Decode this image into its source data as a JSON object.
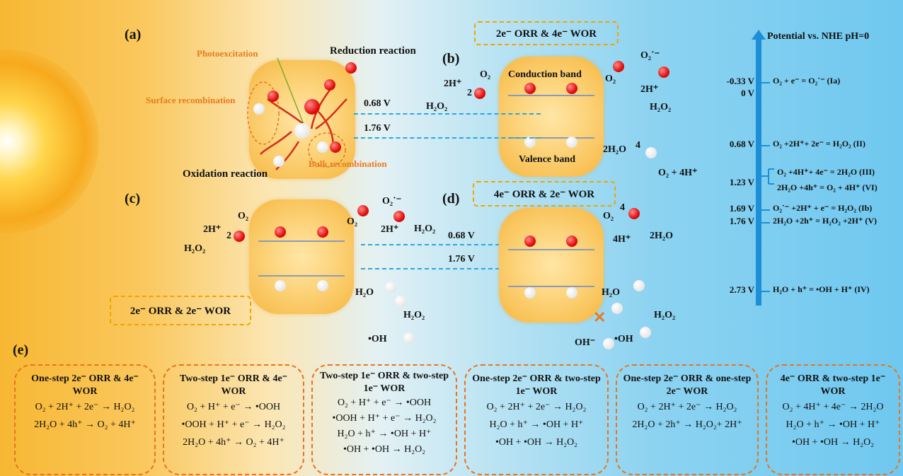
{
  "panels": {
    "a": "(a)",
    "b": "(b)",
    "c": "(c)",
    "d": "(d)",
    "e": "(e)"
  },
  "panel_a": {
    "photoexcitation": "Photoexcitation",
    "reduction": "Reduction reaction",
    "surface_recomb": "Surface recombination",
    "bulk_recomb": "Bulk recombination",
    "oxidation": "Oxidation reaction",
    "hplus": "h⁺",
    "eminus": "e⁻"
  },
  "panel_b": {
    "box_label": "2e⁻ ORR & 4e⁻ WOR",
    "cb": "Conduction band",
    "vb": "Valence band",
    "v1": "0.68 V",
    "v2": "1.76 V",
    "left_2h": "2H⁺",
    "left_o2": "O₂",
    "left_2": "2",
    "left_h2o2": "H₂O₂",
    "right_o2": "O₂",
    "right_o2rad": "O₂˙⁻",
    "right_2h": "2H⁺",
    "right_h2o2": "H₂O₂",
    "wor_2h2o": "2H₂O",
    "wor_4": "4",
    "wor_prod": "O₂ + 4H⁺"
  },
  "panel_c": {
    "box_label": "2e⁻ ORR & 2e⁻ WOR",
    "v1": "0.68 V",
    "v2": "1.76 V",
    "left_2h": "2H⁺",
    "left_o2": "O₂",
    "left_2": "2",
    "left_h2o2": "H₂O₂",
    "o2": "O₂",
    "o2rad": "O₂˙⁻",
    "twoh": "2H⁺",
    "h2o2": "H₂O₂",
    "h2o": "H₂O",
    "h2o2_b": "H₂O₂",
    "oh": "•OH"
  },
  "panel_d": {
    "box_label": "4e⁻ ORR & 2e⁻ WOR",
    "o2": "O₂",
    "four": "4",
    "fourh": "4H⁺",
    "h2o_prod": "2H₂O",
    "h2o": "H₂O",
    "h2o2": "H₂O₂",
    "ohminus": "OH⁻",
    "oh": "•OH",
    "cross": "✕"
  },
  "potential": {
    "title": "Potential vs. NHE pH=0",
    "rows": [
      {
        "v": "-0.33 V",
        "eq": "O₂ + e⁻ = O₂˙⁻ (Ia)"
      },
      {
        "v": "0 V",
        "eq": ""
      },
      {
        "v": "0.68 V",
        "eq": "O₂ +2H⁺+ 2e⁻ = H₂O₂ (II)"
      },
      {
        "v": "1.23 V",
        "eq": "O₂ +4H⁺+ 4e⁻ = 2H₂O (III)"
      },
      {
        "v": "",
        "eq": "2H₂O +4h⁺ = O₂ + 4H⁺ (VI)"
      },
      {
        "v": "1.69 V",
        "eq": "O₂˙⁻ +2H⁺ + e⁻ = H₂O₂ (Ib)"
      },
      {
        "v": "1.76 V",
        "eq": "2H₂O +2h⁺ = H₂O₂ +2H⁺ (V)"
      },
      {
        "v": "2.73 V",
        "eq": "H₂O + h⁺ = •OH + H⁺ (IV)"
      }
    ]
  },
  "pathways": [
    {
      "title": "One-step 2e⁻ ORR & 4e⁻ WOR",
      "lines": [
        "O₂ + 2H⁺ + 2e⁻ → H₂O₂",
        "2H₂O + 4h⁺ → O₂ + 4H⁺"
      ]
    },
    {
      "title": "Two-step 1e⁻ ORR & 4e⁻ WOR",
      "lines": [
        "O₂ + H⁺ + e⁻ → •OOH",
        "•OOH + H⁺ + e⁻ → H₂O₂",
        "2H₂O + 4h⁺ → O₂ + 4H⁺"
      ]
    },
    {
      "title": "Two-step 1e⁻ ORR & two-step 1e⁻ WOR",
      "lines": [
        "O₂ + H⁺ + e⁻ → •OOH",
        "•OOH + H⁺ + e⁻ → H₂O₂",
        "H₂O + h⁺ → •OH + H⁺",
        "•OH + •OH → H₂O₂"
      ]
    },
    {
      "title": "One-step 2e⁻ ORR & two-step 1e⁻ WOR",
      "lines": [
        "O₂ + 2H⁺ + 2e⁻ → H₂O₂",
        "H₂O + h⁺ → •OH + H⁺",
        "•OH + •OH → H₂O₂"
      ]
    },
    {
      "title": "One-step 2e⁻ ORR & one-step 2e⁻ WOR",
      "lines": [
        "O₂ + 2H⁺ + 2e⁻ → H₂O₂",
        "2H₂O + 2h⁺ → H₂O₂+ 2H⁺"
      ]
    },
    {
      "title": "4e⁻ ORR & two-step 1e⁻ WOR",
      "lines": [
        "O₂ + 4H⁺ + 4e⁻ → 2H₂O",
        "H₂O + h⁺ → •OH + H⁺",
        "•OH + •OH → H₂O₂"
      ]
    }
  ],
  "colors": {
    "electron": "#e30d0d",
    "hole": "#ffffff",
    "accent": "#e87b1e",
    "dash": "#2aa7e0",
    "axis": "#1d8fd6"
  }
}
